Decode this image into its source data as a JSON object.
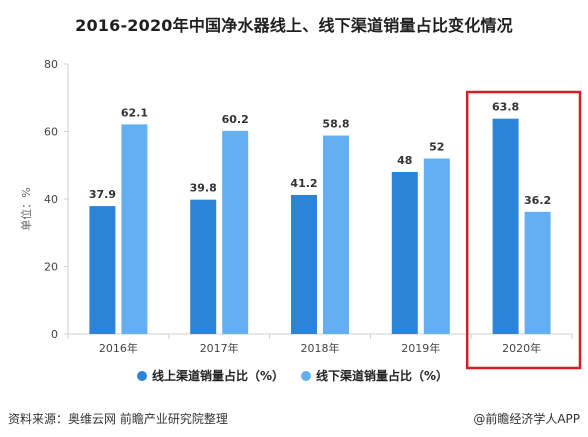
{
  "colors": {
    "series1": "#2b84d8",
    "series2": "#62aff2",
    "highlight": "#d21f26",
    "axis": "#d0d0d0",
    "tick_text": "#444444"
  },
  "chart_data": {
    "type": "bar",
    "title": "2016-2020年中国净水器线上、线下渠道销量占比变化情况",
    "ylabel": "单位：%",
    "xlabel": "",
    "categories": [
      "2016年",
      "2017年",
      "2018年",
      "2019年",
      "2020年"
    ],
    "series": [
      {
        "name": "线上渠道销量占比（%）",
        "values": [
          37.9,
          39.8,
          41.2,
          48,
          63.8
        ],
        "labels": [
          "37.9",
          "39.8",
          "41.2",
          "48",
          "63.8"
        ]
      },
      {
        "name": "线下渠道销量占比（%）",
        "values": [
          62.1,
          60.2,
          58.8,
          52,
          36.2
        ],
        "labels": [
          "62.1",
          "60.2",
          "58.8",
          "52",
          "36.2"
        ]
      }
    ],
    "ylim": [
      0,
      80
    ],
    "yticks": [
      0,
      20,
      40,
      60,
      80
    ],
    "grid": false,
    "legend_position": "bottom",
    "highlight_category": "2020年"
  },
  "footer": {
    "source": "资料来源：奥维云网 前瞻产业研究院整理",
    "brand": "@前瞻经济学人APP"
  }
}
